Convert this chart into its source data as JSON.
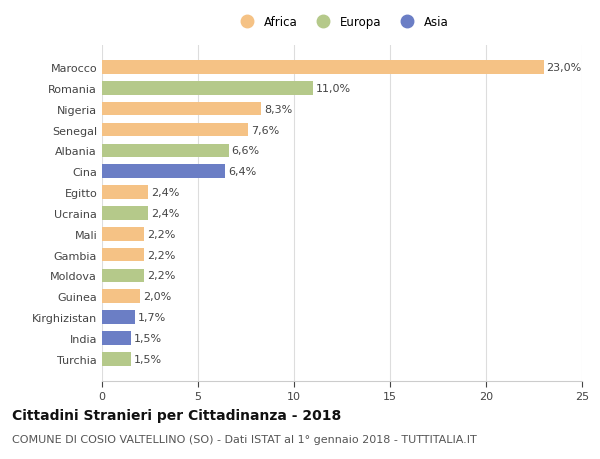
{
  "countries": [
    "Marocco",
    "Romania",
    "Nigeria",
    "Senegal",
    "Albania",
    "Cina",
    "Egitto",
    "Ucraina",
    "Mali",
    "Gambia",
    "Moldova",
    "Guinea",
    "Kirghizistan",
    "India",
    "Turchia"
  ],
  "values": [
    23.0,
    11.0,
    8.3,
    7.6,
    6.6,
    6.4,
    2.4,
    2.4,
    2.2,
    2.2,
    2.2,
    2.0,
    1.7,
    1.5,
    1.5
  ],
  "labels": [
    "23,0%",
    "11,0%",
    "8,3%",
    "7,6%",
    "6,6%",
    "6,4%",
    "2,4%",
    "2,4%",
    "2,2%",
    "2,2%",
    "2,2%",
    "2,0%",
    "1,7%",
    "1,5%",
    "1,5%"
  ],
  "colors": [
    "#f5c285",
    "#b5c98a",
    "#f5c285",
    "#f5c285",
    "#b5c98a",
    "#6b7ec5",
    "#f5c285",
    "#b5c98a",
    "#f5c285",
    "#f5c285",
    "#b5c98a",
    "#f5c285",
    "#6b7ec5",
    "#6b7ec5",
    "#b5c98a"
  ],
  "legend_labels": [
    "Africa",
    "Europa",
    "Asia"
  ],
  "legend_colors": [
    "#f5c285",
    "#b5c98a",
    "#6b7ec5"
  ],
  "xlim": [
    0,
    25
  ],
  "xticks": [
    0,
    5,
    10,
    15,
    20,
    25
  ],
  "title": "Cittadini Stranieri per Cittadinanza - 2018",
  "subtitle": "COMUNE DI COSIO VALTELLINO (SO) - Dati ISTAT al 1° gennaio 2018 - TUTTITALIA.IT",
  "title_fontsize": 10,
  "subtitle_fontsize": 8,
  "tick_fontsize": 8,
  "bar_value_fontsize": 8,
  "background_color": "#ffffff"
}
